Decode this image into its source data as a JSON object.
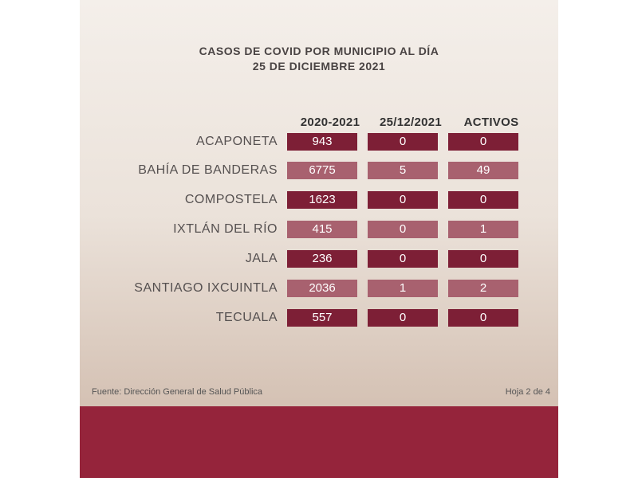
{
  "title_line1": "CASOS DE COVID POR MUNICIPIO AL DÍA",
  "title_line2": "25 DE DICIEMBRE 2021",
  "columns": [
    "2020-2021",
    "25/12/2021",
    "ACTIVOS"
  ],
  "rows": [
    {
      "municipio": "ACAPONETA",
      "total": "943",
      "dia": "0",
      "activos": "0"
    },
    {
      "municipio": "BAHÍA DE BANDERAS",
      "total": "6775",
      "dia": "5",
      "activos": "49"
    },
    {
      "municipio": "COMPOSTELA",
      "total": "1623",
      "dia": "0",
      "activos": "0"
    },
    {
      "municipio": "IXTLÁN DEL RÍO",
      "total": "415",
      "dia": "0",
      "activos": "1"
    },
    {
      "municipio": "JALA",
      "total": "236",
      "dia": "0",
      "activos": "0"
    },
    {
      "municipio": "SANTIAGO IXCUINTLA",
      "total": "2036",
      "dia": "1",
      "activos": "2"
    },
    {
      "municipio": "TECUALA",
      "total": "557",
      "dia": "0",
      "activos": "0"
    }
  ],
  "footer_source": "Fuente: Dirección General de Salud Pública",
  "footer_page": "Hoja 2 de 4",
  "colors": {
    "dark_cell": "#7d1f36",
    "light_cell": "#a8616f",
    "band": "#95243b"
  }
}
